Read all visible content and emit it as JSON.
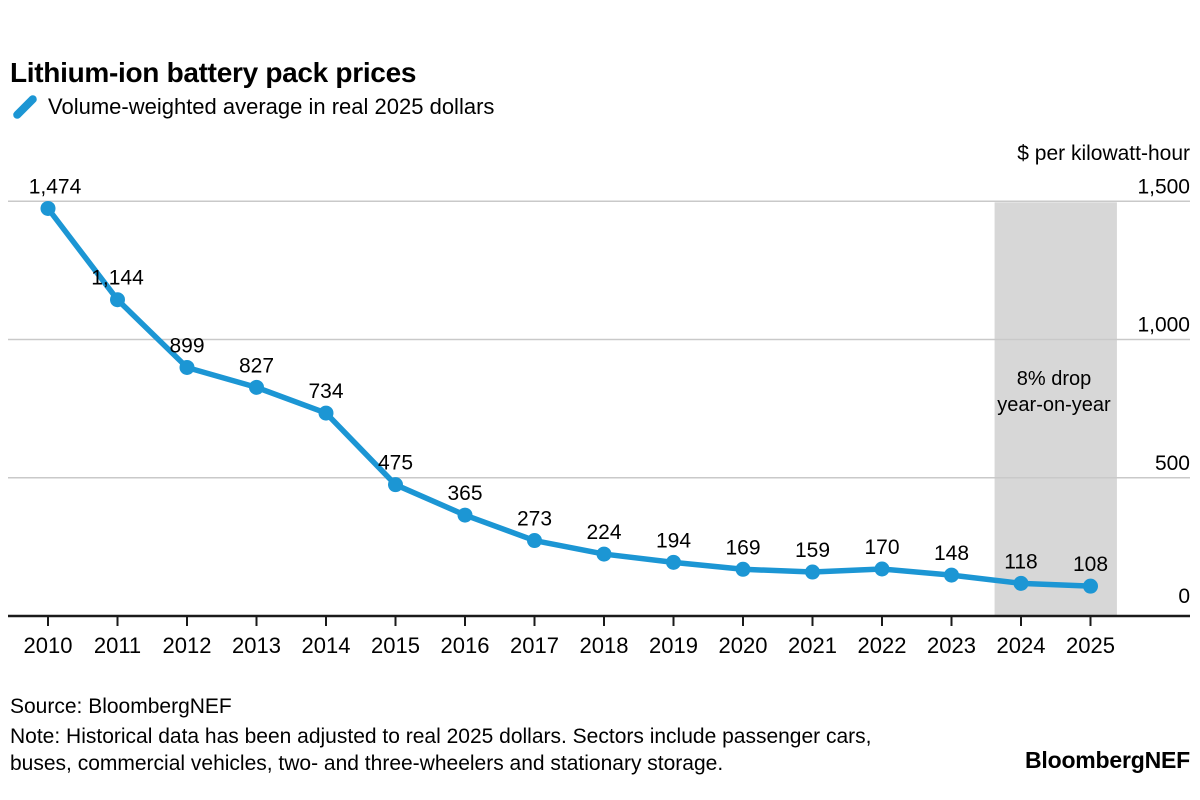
{
  "title": "Lithium-ion battery pack prices",
  "legend": {
    "label": "Volume-weighted average in real 2025 dollars",
    "marker_color": "#1c96d4"
  },
  "unit_label": "$ per kilowatt-hour",
  "annotation": {
    "line1": "8% drop",
    "line2": "year-on-year"
  },
  "source": "Source: BloombergNEF",
  "note_lines": [
    "Note: Historical data has been adjusted to real 2025 dollars. Sectors include passenger cars,",
    "buses, commercial vehicles, two- and three-wheelers and stationary storage."
  ],
  "logo": "BloombergNEF",
  "colors": {
    "line": "#1c96d4",
    "gridline": "#c9c9c9",
    "axis": "#1a1a1a",
    "band": "#d7d7d7",
    "text": "#000000"
  },
  "chart_data": {
    "type": "line",
    "title": "Lithium-ion battery pack prices",
    "subtitle": "Volume-weighted average in real 2025 dollars",
    "ylabel": "$ per kilowatt-hour",
    "xlabel": "",
    "categories": [
      2010,
      2011,
      2012,
      2013,
      2014,
      2015,
      2016,
      2017,
      2018,
      2019,
      2020,
      2021,
      2022,
      2023,
      2024,
      2025
    ],
    "values": [
      1474,
      1144,
      899,
      827,
      734,
      475,
      365,
      273,
      224,
      194,
      169,
      159,
      170,
      148,
      118,
      108
    ],
    "point_labels": [
      "1,474",
      "1,144",
      "899",
      "827",
      "734",
      "475",
      "365",
      "273",
      "224",
      "194",
      "169",
      "159",
      "170",
      "148",
      "118",
      "108"
    ],
    "yticks": [
      {
        "value": 0,
        "label": "0"
      },
      {
        "value": 500,
        "label": "500"
      },
      {
        "value": 1000,
        "label": "1,000"
      },
      {
        "value": 1500,
        "label": "1,500"
      }
    ],
    "ylim": [
      0,
      1500
    ],
    "grid": "horizontal",
    "legend_position": "top-left",
    "highlight_band": {
      "from_year": 2023.62,
      "to_year": 2025.38,
      "label": "8% drop year-on-year"
    }
  }
}
